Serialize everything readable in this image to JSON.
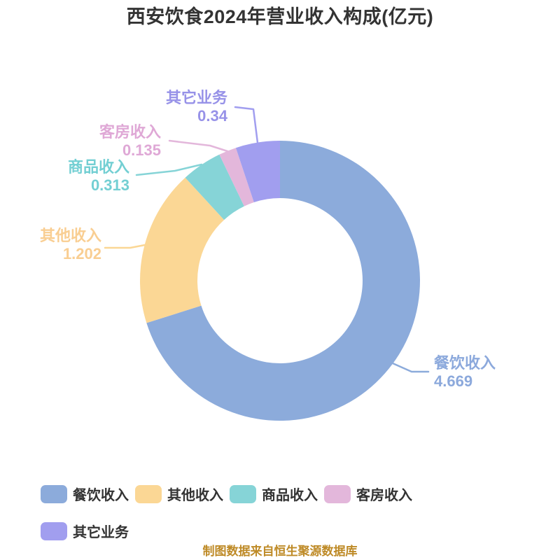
{
  "chart_data": {
    "type": "pie",
    "subtype": "donut",
    "title": "西安饮食2024年营业收入构成(亿元)",
    "unit": "亿元",
    "legend_position": "bottom",
    "direction": "clockwise",
    "start_at": "top",
    "inner_radius_ratio": 0.59,
    "total": 6.659,
    "segments": [
      {
        "label": "餐饮收入",
        "slug": "catering-revenue",
        "value": 4.669,
        "value_text": "4.669",
        "color": "#8CABDB",
        "text_color": "#8CA9DC"
      },
      {
        "label": "其他收入",
        "slug": "other-income",
        "value": 1.202,
        "value_text": "1.202",
        "color": "#FBD795",
        "text_color": "#F9CE92"
      },
      {
        "label": "商品收入",
        "slug": "goods-revenue",
        "value": 0.313,
        "value_text": "0.313",
        "color": "#86D4D7",
        "text_color": "#73CFD3"
      },
      {
        "label": "客房收入",
        "slug": "room-revenue",
        "value": 0.135,
        "value_text": "0.135",
        "color": "#E3B7DB",
        "text_color": "#DFA8D6"
      },
      {
        "label": "其它业务",
        "slug": "other-business",
        "value": 0.34,
        "value_text": "0.34",
        "color": "#A19EEF",
        "text_color": "#9792E8"
      }
    ]
  },
  "footer_note": "制图数据来自恒生聚源数据库",
  "colors": {
    "title_text": "#333333",
    "legend_text": "#333333",
    "footer_text": "#BE8A26",
    "background": "#FFFFFF"
  }
}
